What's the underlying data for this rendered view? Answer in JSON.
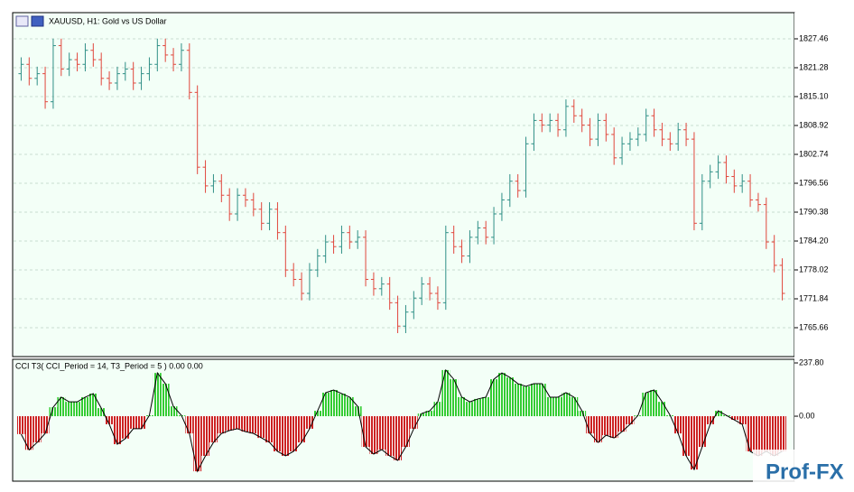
{
  "chart_data": [
    {
      "type": "ohlc",
      "title": "XAUUSD, H1:  Gold vs US Dollar",
      "up_color": "#2f8f86",
      "down_color": "#e0463c",
      "grid": true,
      "ylim": [
        1759.48,
        1833.06
      ],
      "yticks": [
        1827.46,
        1821.28,
        {
          "value": 1815.1,
          "label": "1815.10"
        },
        1808.92,
        1802.74,
        1796.56,
        1790.38,
        {
          "value": 1784.2,
          "label": "1784.20"
        },
        1778.02,
        1771.84,
        1765.66
      ],
      "bars": [
        [
          1820,
          1823.5,
          1818.5,
          1822
        ],
        [
          1822,
          1823.5,
          1817.5,
          1819
        ],
        [
          1819,
          1821.5,
          1817.5,
          1820
        ],
        [
          1820,
          1821.5,
          1812.5,
          1814
        ],
        [
          1814,
          1827.5,
          1812.5,
          1826
        ],
        [
          1826,
          1827.5,
          1819.5,
          1821
        ],
        [
          1821,
          1824.5,
          1819.5,
          1823
        ],
        [
          1823,
          1824.5,
          1820.5,
          1822
        ],
        [
          1822,
          1826.5,
          1820.5,
          1825
        ],
        [
          1825,
          1826.5,
          1821.5,
          1823
        ],
        [
          1823,
          1824.5,
          1817.5,
          1819
        ],
        [
          1819,
          1820.5,
          1816.5,
          1818
        ],
        [
          1818,
          1821.5,
          1816.5,
          1820
        ],
        [
          1820,
          1822.5,
          1818.5,
          1821
        ],
        [
          1821,
          1822.5,
          1816.5,
          1818
        ],
        [
          1818,
          1821.5,
          1816.5,
          1820
        ],
        [
          1820,
          1823.5,
          1818.5,
          1822
        ],
        [
          1822,
          1827.5,
          1820.5,
          1826
        ],
        [
          1826,
          1827.5,
          1822.5,
          1824
        ],
        [
          1824,
          1825.5,
          1820.5,
          1822
        ],
        [
          1822,
          1826.5,
          1820.5,
          1825
        ],
        [
          1825,
          1826.5,
          1814.5,
          1816
        ],
        [
          1816,
          1817.5,
          1798.5,
          1800
        ],
        [
          1800,
          1801.5,
          1794.5,
          1796
        ],
        [
          1796,
          1798.5,
          1794.5,
          1797
        ],
        [
          1797,
          1798.5,
          1792.5,
          1794
        ],
        [
          1794,
          1795.5,
          1788.5,
          1790
        ],
        [
          1790,
          1795.5,
          1788.5,
          1794
        ],
        [
          1794,
          1795.5,
          1791.5,
          1793
        ],
        [
          1793,
          1794.5,
          1789.5,
          1791
        ],
        [
          1791,
          1792.5,
          1786.5,
          1788
        ],
        [
          1788,
          1792.5,
          1786.5,
          1791
        ],
        [
          1791,
          1792.5,
          1784.5,
          1786
        ],
        [
          1786,
          1787.5,
          1776.5,
          1778
        ],
        [
          1778,
          1779.5,
          1774.5,
          1776
        ],
        [
          1776,
          1777.5,
          1771.5,
          1773
        ],
        [
          1773,
          1779.5,
          1771.5,
          1778
        ],
        [
          1778,
          1782.5,
          1776.5,
          1781
        ],
        [
          1781,
          1785.5,
          1779.5,
          1784
        ],
        [
          1784,
          1785.5,
          1781.5,
          1783
        ],
        [
          1783,
          1787.5,
          1781.5,
          1786
        ],
        [
          1786,
          1787.5,
          1782.5,
          1784
        ],
        [
          1784,
          1786.5,
          1782.5,
          1785
        ],
        [
          1785,
          1786.5,
          1774.5,
          1776
        ],
        [
          1776,
          1777.5,
          1772.5,
          1774
        ],
        [
          1774,
          1776.5,
          1772.5,
          1775
        ],
        [
          1775,
          1776.5,
          1769.5,
          1771
        ],
        [
          1771,
          1772.5,
          1764.5,
          1766
        ],
        [
          1766,
          1770.5,
          1764.5,
          1769
        ],
        [
          1769,
          1773.5,
          1767.5,
          1772
        ],
        [
          1772,
          1776.5,
          1770.5,
          1775
        ],
        [
          1775,
          1776.5,
          1771.5,
          1773
        ],
        [
          1773,
          1774.5,
          1769.5,
          1771
        ],
        [
          1771,
          1787.5,
          1769.5,
          1786
        ],
        [
          1786,
          1787.5,
          1781.5,
          1783
        ],
        [
          1783,
          1784.5,
          1779.5,
          1781
        ],
        [
          1781,
          1786.5,
          1779.5,
          1785
        ],
        [
          1785,
          1788.5,
          1783.5,
          1787
        ],
        [
          1787,
          1788.5,
          1783.5,
          1785
        ],
        [
          1785,
          1791.5,
          1783.5,
          1790
        ],
        [
          1790,
          1794.5,
          1788.5,
          1793
        ],
        [
          1793,
          1798.5,
          1791.5,
          1797
        ],
        [
          1797,
          1798.5,
          1793.5,
          1795
        ],
        [
          1795,
          1806.5,
          1793.5,
          1805
        ],
        [
          1805,
          1811.5,
          1803.5,
          1810
        ],
        [
          1810,
          1811.5,
          1807.5,
          1809
        ],
        [
          1809,
          1811.5,
          1807.5,
          1810
        ],
        [
          1810,
          1811.5,
          1806.5,
          1808
        ],
        [
          1808,
          1814.5,
          1806.5,
          1813
        ],
        [
          1813,
          1814.5,
          1809.5,
          1811
        ],
        [
          1811,
          1812.5,
          1807.5,
          1809
        ],
        [
          1809,
          1810.5,
          1804.5,
          1806
        ],
        [
          1806,
          1811.5,
          1804.5,
          1810
        ],
        [
          1810,
          1811.5,
          1805.5,
          1807
        ],
        [
          1807,
          1808.5,
          1800.5,
          1802
        ],
        [
          1802,
          1806.5,
          1800.5,
          1805
        ],
        [
          1805,
          1807.5,
          1803.5,
          1806
        ],
        [
          1806,
          1808.5,
          1804.5,
          1807
        ],
        [
          1807,
          1812.5,
          1805.5,
          1811
        ],
        [
          1811,
          1812.5,
          1806.5,
          1808
        ],
        [
          1808,
          1809.5,
          1804.5,
          1806
        ],
        [
          1806,
          1807.5,
          1803.5,
          1805
        ],
        [
          1805,
          1809.5,
          1803.5,
          1808
        ],
        [
          1808,
          1809.5,
          1804.5,
          1806
        ],
        [
          1806,
          1807.5,
          1786.5,
          1788
        ],
        [
          1788,
          1798.5,
          1786.5,
          1797
        ],
        [
          1797,
          1800.5,
          1795.5,
          1799
        ],
        [
          1799,
          1802.5,
          1797.5,
          1801
        ],
        [
          1801,
          1802.5,
          1796.5,
          1798
        ],
        [
          1798,
          1799.5,
          1794.5,
          1796
        ],
        [
          1796,
          1798.5,
          1794.5,
          1797
        ],
        [
          1797,
          1798.5,
          1791.5,
          1793
        ],
        [
          1793,
          1794.5,
          1790.5,
          1792
        ],
        [
          1792,
          1793.5,
          1782.5,
          1784
        ],
        [
          1784,
          1785.5,
          1777.5,
          1779
        ],
        [
          1779,
          1780.5,
          1771.5,
          1773
        ]
      ]
    },
    {
      "type": "histogram",
      "title": "CCI T3( CCI_Period = 14, T3_Period = 5 ) 0.00 0.00",
      "pos_color": "#33cc33",
      "neg_color": "#cc2222",
      "line_color": "#000000",
      "ylim": [
        -290,
        254
      ],
      "yticks": [
        {
          "value": 237.8,
          "label": "237.80"
        },
        {
          "value": 0,
          "label": "0.00"
        }
      ],
      "values": [
        -80,
        -150,
        -117,
        -77,
        40,
        85,
        64,
        64,
        85,
        101,
        36,
        -36,
        -125,
        -100,
        -56,
        -56,
        4,
        193,
        145,
        44,
        4,
        -77,
        -246,
        -177,
        -117,
        -77,
        -64,
        -56,
        -69,
        -77,
        -97,
        -117,
        -157,
        -177,
        -157,
        -117,
        -56,
        24,
        105,
        117,
        101,
        85,
        44,
        -137,
        -169,
        -149,
        -177,
        -197,
        -137,
        -56,
        12,
        24,
        64,
        206,
        165,
        85,
        64,
        77,
        85,
        165,
        193,
        173,
        145,
        133,
        145,
        145,
        85,
        85,
        105,
        85,
        24,
        -77,
        -117,
        -85,
        -97,
        -69,
        -36,
        4,
        105,
        117,
        64,
        4,
        -77,
        -177,
        -238,
        -137,
        -36,
        24,
        4,
        -16,
        -36,
        -157,
        -177,
        -157,
        -177,
        -157
      ]
    }
  ],
  "watermark": "Prof-FX"
}
